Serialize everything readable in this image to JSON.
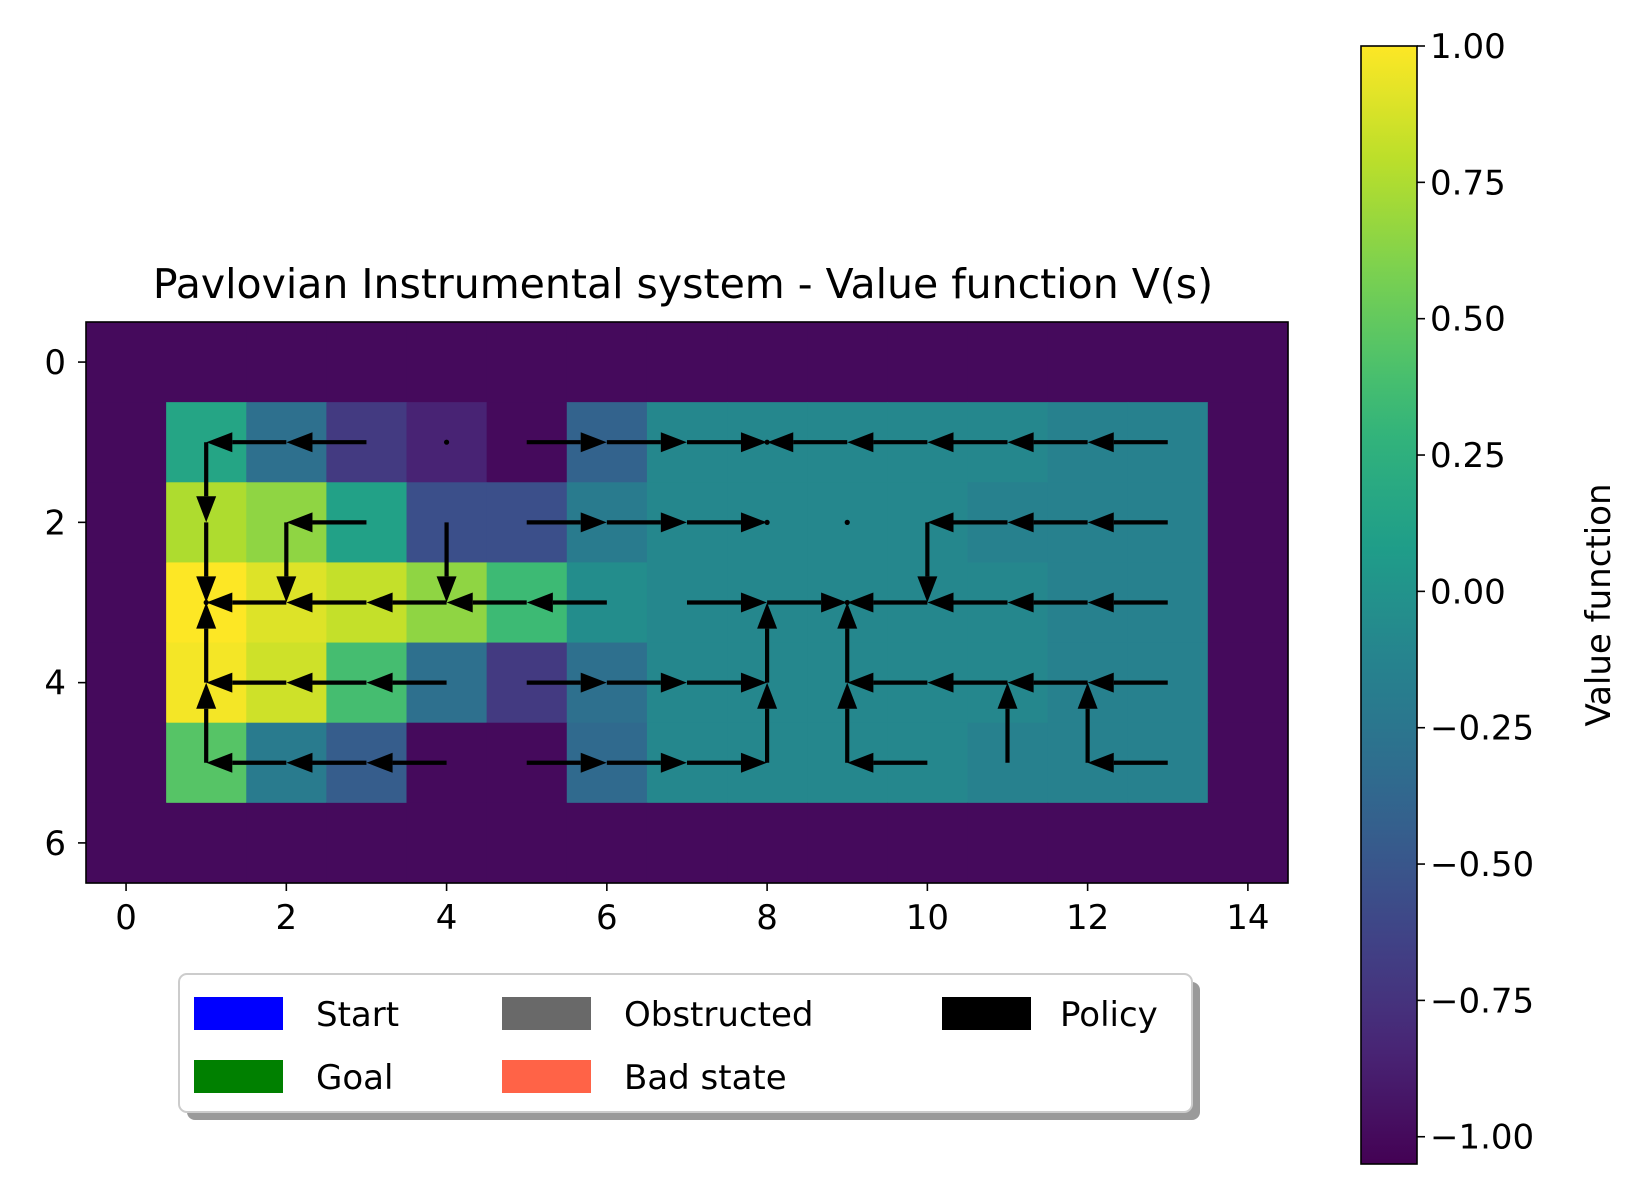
{
  "chart_data": {
    "type": "heatmap",
    "title": "Pavlovian Instrumental system - Value function V(s)",
    "xlabel": "",
    "ylabel": "",
    "xlim": [
      -0.5,
      14.5
    ],
    "ylim": [
      6.5,
      -0.5
    ],
    "x_ticks": [
      0,
      2,
      4,
      6,
      8,
      10,
      12,
      14
    ],
    "y_ticks": [
      0,
      2,
      4,
      6
    ],
    "x_tick_labels": [
      "0",
      "2",
      "4",
      "6",
      "8",
      "10",
      "12",
      "14"
    ],
    "y_tick_labels": [
      "0",
      "2",
      "4",
      "6"
    ],
    "values": [
      [
        -1.0,
        -1.0,
        -1.0,
        -1.0,
        -1.0,
        -1.0,
        -1.0,
        -1.0,
        -1.0,
        -1.0,
        -1.0,
        -1.0,
        -1.0,
        -1.0,
        -1.0
      ],
      [
        -1.0,
        0.15,
        -0.3,
        -0.7,
        -0.85,
        -1.0,
        -0.4,
        -0.1,
        -0.1,
        -0.1,
        -0.1,
        -0.1,
        -0.15,
        -0.15,
        -1.0
      ],
      [
        -1.0,
        0.75,
        0.65,
        0.12,
        -0.55,
        -0.55,
        -0.2,
        -0.1,
        -0.1,
        -0.1,
        -0.1,
        -0.15,
        -0.15,
        -0.15,
        -1.0
      ],
      [
        -1.0,
        1.0,
        0.9,
        0.82,
        0.65,
        0.35,
        -0.05,
        -0.1,
        -0.1,
        -0.1,
        -0.1,
        -0.1,
        -0.15,
        -0.15,
        -1.0
      ],
      [
        -1.0,
        0.97,
        0.85,
        0.38,
        -0.3,
        -0.7,
        -0.3,
        -0.1,
        -0.1,
        -0.1,
        -0.1,
        -0.1,
        -0.15,
        -0.15,
        -1.0
      ],
      [
        -1.0,
        0.45,
        -0.2,
        -0.45,
        -1.0,
        -1.0,
        -0.35,
        -0.1,
        -0.1,
        -0.1,
        -0.1,
        -0.15,
        -0.15,
        -0.15,
        -1.0
      ],
      [
        -1.0,
        -1.0,
        -1.0,
        -1.0,
        -1.0,
        -1.0,
        -1.0,
        -1.0,
        -1.0,
        -1.0,
        -1.0,
        -1.0,
        -1.0,
        -1.0,
        -1.0
      ]
    ],
    "policy": [
      [
        "none",
        "none",
        "none",
        "none",
        "none",
        "none",
        "none",
        "none",
        "none",
        "none",
        "none",
        "none",
        "none",
        "none",
        "none"
      ],
      [
        "none",
        "down",
        "left",
        "left",
        "stay",
        "right",
        "right",
        "right",
        "stay",
        "left",
        "left",
        "left",
        "left",
        "left",
        "none"
      ],
      [
        "none",
        "down",
        "down",
        "left",
        "down",
        "right",
        "right",
        "right",
        "stay",
        "stay",
        "down",
        "left",
        "left",
        "left",
        "none"
      ],
      [
        "none",
        "stay",
        "left",
        "left",
        "left",
        "left",
        "left",
        "right",
        "right",
        "stay",
        "left",
        "left",
        "left",
        "left",
        "none"
      ],
      [
        "none",
        "up",
        "left",
        "left",
        "left",
        "right",
        "right",
        "right",
        "up",
        "up",
        "left",
        "left",
        "left",
        "left",
        "none"
      ],
      [
        "none",
        "up",
        "left",
        "left",
        "left",
        "right",
        "right",
        "right",
        "up",
        "up",
        "left",
        "up",
        "up",
        "left",
        "none"
      ],
      [
        "none",
        "none",
        "none",
        "none",
        "none",
        "none",
        "none",
        "none",
        "none",
        "none",
        "none",
        "none",
        "none",
        "none",
        "none"
      ]
    ],
    "colorbar": {
      "label": "Value function",
      "range": [
        -1.05,
        1.0
      ],
      "colormap": "viridis",
      "ticks": [
        1.0,
        0.75,
        0.5,
        0.25,
        0.0,
        -0.25,
        -0.5,
        -0.75,
        -1.0
      ],
      "tick_labels": [
        "1.00",
        "0.75",
        "0.50",
        "0.25",
        "0.00",
        "−0.25",
        "−0.50",
        "−0.75",
        "−1.00"
      ]
    },
    "legend": {
      "placement": "below",
      "entries": [
        {
          "label": "Start",
          "color": "#0000ff"
        },
        {
          "label": "Obstructed",
          "color": "#696969"
        },
        {
          "label": "Policy",
          "color": "#000000"
        },
        {
          "label": "Goal",
          "color": "#008000"
        },
        {
          "label": "Bad state",
          "color": "#ff6347"
        }
      ]
    }
  }
}
